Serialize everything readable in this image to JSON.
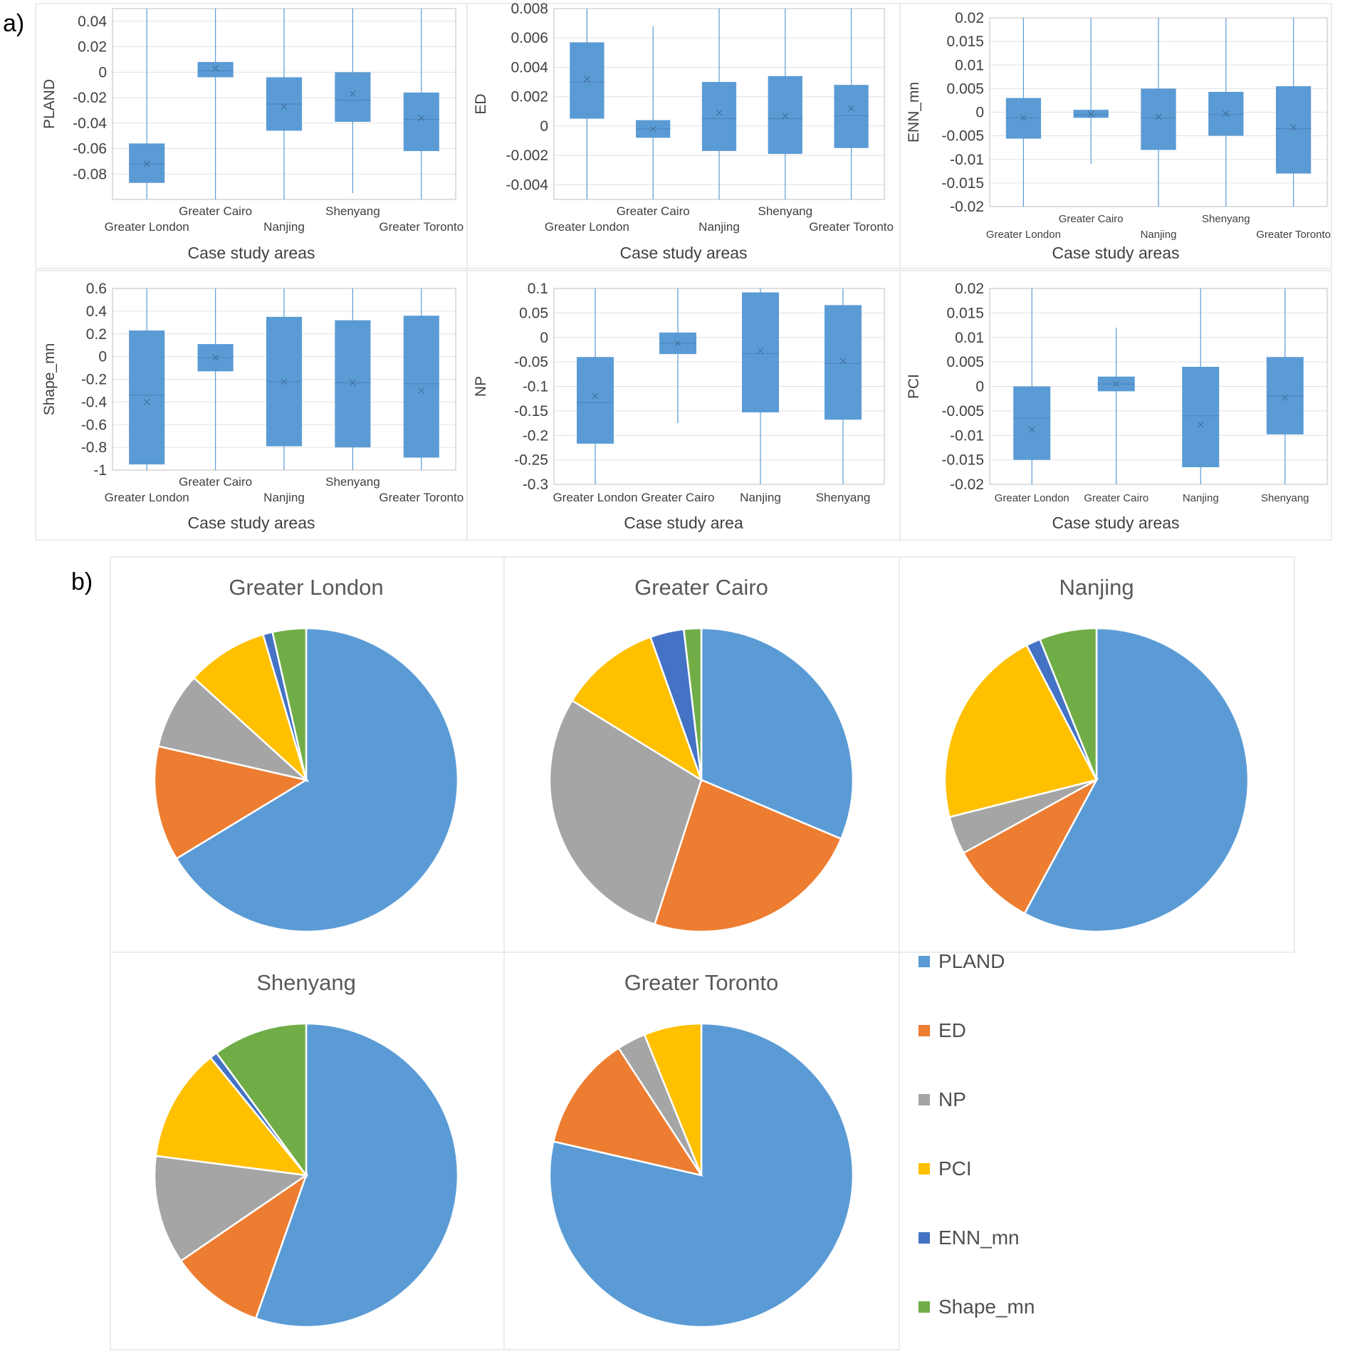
{
  "panel_labels": {
    "a": "a)",
    "b": "b)"
  },
  "colors": {
    "box": "#5B9BD5",
    "PLAND": "#5B9BD5",
    "ED": "#ED7D31",
    "NP": "#A5A5A5",
    "PCI": "#FFC000",
    "ENN_mn": "#4472C4",
    "Shape_mn": "#70AD47"
  },
  "legend": [
    {
      "key": "PLAND",
      "label": "PLAND"
    },
    {
      "key": "ED",
      "label": "ED"
    },
    {
      "key": "NP",
      "label": "NP"
    },
    {
      "key": "PCI",
      "label": "PCI"
    },
    {
      "key": "ENN_mn",
      "label": "ENN_mn"
    },
    {
      "key": "Shape_mn",
      "label": "Shape_mn"
    }
  ],
  "chart_data": [
    {
      "type": "box",
      "ylabel": "PLAND",
      "xlabel": "Case study areas",
      "ylim": [
        -0.1,
        0.05
      ],
      "yticks": [
        0.04,
        0.02,
        0,
        -0.02,
        -0.04,
        -0.06,
        -0.08
      ],
      "ytick_labels": [
        "0.04",
        "0.02",
        "0",
        "-0.02",
        "-0.04",
        "-0.06",
        "-0.08"
      ],
      "categories": [
        "Greater London",
        "Greater Cairo",
        "Nanjing",
        "Shenyang",
        "Greater Toronto"
      ],
      "boxes": [
        {
          "q1": -0.087,
          "median": -0.072,
          "q3": -0.056,
          "mean": -0.072,
          "whisker_low": -0.1,
          "whisker_high": 0.05
        },
        {
          "q1": -0.004,
          "median": 0.001,
          "q3": 0.008,
          "mean": 0.003,
          "whisker_low": -0.1,
          "whisker_high": 0.05
        },
        {
          "q1": -0.046,
          "median": -0.025,
          "q3": -0.004,
          "mean": -0.027,
          "whisker_low": -0.1,
          "whisker_high": 0.05
        },
        {
          "q1": -0.039,
          "median": -0.022,
          "q3": 0.0,
          "mean": -0.017,
          "whisker_low": -0.095,
          "whisker_high": 0.05
        },
        {
          "q1": -0.062,
          "median": -0.037,
          "q3": -0.016,
          "mean": -0.036,
          "whisker_low": -0.1,
          "whisker_high": 0.05
        }
      ]
    },
    {
      "type": "box",
      "ylabel": "ED",
      "xlabel": "Case study areas",
      "ylim": [
        -0.005,
        0.008
      ],
      "yticks": [
        0.008,
        0.006,
        0.004,
        0.002,
        0,
        -0.002,
        -0.004
      ],
      "ytick_labels": [
        "0.008",
        "0.006",
        "0.004",
        "0.002",
        "0",
        "-0.002",
        "-0.004"
      ],
      "categories": [
        "Greater London",
        "Greater Cairo",
        "Nanjing",
        "Shenyang",
        "Greater Toronto"
      ],
      "boxes": [
        {
          "q1": 0.0005,
          "median": 0.003,
          "q3": 0.0057,
          "mean": 0.0032,
          "whisker_low": -0.005,
          "whisker_high": 0.008
        },
        {
          "q1": -0.0008,
          "median": -0.0002,
          "q3": 0.0004,
          "mean": -0.0002,
          "whisker_low": -0.005,
          "whisker_high": 0.0068
        },
        {
          "q1": -0.0017,
          "median": 0.0005,
          "q3": 0.003,
          "mean": 0.0009,
          "whisker_low": -0.005,
          "whisker_high": 0.008
        },
        {
          "q1": -0.0019,
          "median": 0.0005,
          "q3": 0.0034,
          "mean": 0.0007,
          "whisker_low": -0.005,
          "whisker_high": 0.008
        },
        {
          "q1": -0.0015,
          "median": 0.0007,
          "q3": 0.0028,
          "mean": 0.0012,
          "whisker_low": -0.005,
          "whisker_high": 0.008
        }
      ]
    },
    {
      "type": "box",
      "ylabel": "ENN_mn",
      "xlabel": "Case study areas",
      "ylim": [
        -0.02,
        0.02
      ],
      "yticks": [
        0.02,
        0.015,
        0.01,
        0.005,
        0,
        -0.005,
        -0.01,
        -0.015,
        -0.02
      ],
      "ytick_labels": [
        "0.02",
        "0.015",
        "0.01",
        "0.005",
        "0",
        "-0.005",
        "-0.01",
        "-0.015",
        "-0.02"
      ],
      "categories": [
        "Greater London",
        "Greater Cairo",
        "Nanjing",
        "Shenyang",
        "Greater Toronto"
      ],
      "boxes": [
        {
          "q1": -0.0056,
          "median": -0.0012,
          "q3": 0.003,
          "mean": -0.0012,
          "whisker_low": -0.02,
          "whisker_high": 0.02
        },
        {
          "q1": -0.0012,
          "median": -0.0005,
          "q3": 0.0005,
          "mean": -0.0004,
          "whisker_low": -0.011,
          "whisker_high": 0.02
        },
        {
          "q1": -0.008,
          "median": -0.0012,
          "q3": 0.005,
          "mean": -0.001,
          "whisker_low": -0.02,
          "whisker_high": 0.02
        },
        {
          "q1": -0.005,
          "median": -0.0005,
          "q3": 0.0043,
          "mean": -0.0003,
          "whisker_low": -0.02,
          "whisker_high": 0.02
        },
        {
          "q1": -0.013,
          "median": -0.0035,
          "q3": 0.0055,
          "mean": -0.0032,
          "whisker_low": -0.02,
          "whisker_high": 0.02
        }
      ]
    },
    {
      "type": "box",
      "ylabel": "Shape_mn",
      "xlabel": "Case study areas",
      "ylim": [
        -1,
        0.6
      ],
      "yticks": [
        0.6,
        0.4,
        0.2,
        0,
        -0.2,
        -0.4,
        -0.6,
        -0.8,
        -1
      ],
      "ytick_labels": [
        "0.6",
        "0.4",
        "0.2",
        "0",
        "-0.2",
        "-0.4",
        "-0.6",
        "-0.8",
        "-1"
      ],
      "categories": [
        "Greater London",
        "Greater Cairo",
        "Nanjing",
        "Shenyang",
        "Greater Toronto"
      ],
      "boxes": [
        {
          "q1": -0.95,
          "median": -0.34,
          "q3": 0.23,
          "mean": -0.4,
          "whisker_low": -1,
          "whisker_high": 0.6
        },
        {
          "q1": -0.13,
          "median": -0.01,
          "q3": 0.11,
          "mean": -0.01,
          "whisker_low": -1,
          "whisker_high": 0.6
        },
        {
          "q1": -0.79,
          "median": -0.22,
          "q3": 0.35,
          "mean": -0.22,
          "whisker_low": -1,
          "whisker_high": 0.6
        },
        {
          "q1": -0.8,
          "median": -0.23,
          "q3": 0.32,
          "mean": -0.23,
          "whisker_low": -1,
          "whisker_high": 0.6
        },
        {
          "q1": -0.89,
          "median": -0.24,
          "q3": 0.36,
          "mean": -0.3,
          "whisker_low": -1,
          "whisker_high": 0.6
        }
      ]
    },
    {
      "type": "box",
      "ylabel": "NP",
      "xlabel": "Case study area",
      "ylim": [
        -0.3,
        0.1
      ],
      "yticks": [
        0.1,
        0.05,
        0,
        -0.05,
        -0.1,
        -0.15,
        -0.2,
        -0.25,
        -0.3
      ],
      "ytick_labels": [
        "0.1",
        "0.05",
        "0",
        "-0.05",
        "-0.1",
        "-0.15",
        "-0.2",
        "-0.25",
        "-0.3"
      ],
      "categories": [
        "Greater London",
        "Greater Cairo",
        "Nanjing",
        "Shenyang"
      ],
      "boxes": [
        {
          "q1": -0.217,
          "median": -0.133,
          "q3": -0.04,
          "mean": -0.12,
          "whisker_low": -0.3,
          "whisker_high": 0.1
        },
        {
          "q1": -0.034,
          "median": -0.012,
          "q3": 0.01,
          "mean": -0.012,
          "whisker_low": -0.175,
          "whisker_high": 0.1
        },
        {
          "q1": -0.153,
          "median": -0.033,
          "q3": 0.092,
          "mean": -0.027,
          "whisker_low": -0.3,
          "whisker_high": 0.1
        },
        {
          "q1": -0.168,
          "median": -0.053,
          "q3": 0.066,
          "mean": -0.048,
          "whisker_low": -0.3,
          "whisker_high": 0.1
        }
      ]
    },
    {
      "type": "box",
      "ylabel": "PCI",
      "xlabel": "Case study areas",
      "ylim": [
        -0.02,
        0.02
      ],
      "yticks": [
        0.02,
        0.015,
        0.01,
        0.005,
        0,
        -0.005,
        -0.01,
        -0.015,
        -0.02
      ],
      "ytick_labels": [
        "0.02",
        "0.015",
        "0.01",
        "0.005",
        "0",
        "-0.005",
        "-0.01",
        "-0.015",
        "-0.02"
      ],
      "categories": [
        "Greater London",
        "Greater Cairo",
        "Nanjing",
        "Shenyang"
      ],
      "boxes": [
        {
          "q1": -0.015,
          "median": -0.0065,
          "q3": 0.0,
          "mean": -0.0088,
          "whisker_low": -0.02,
          "whisker_high": 0.02
        },
        {
          "q1": -0.001,
          "median": 0.0005,
          "q3": 0.002,
          "mean": 0.0005,
          "whisker_low": -0.02,
          "whisker_high": 0.012
        },
        {
          "q1": -0.0165,
          "median": -0.006,
          "q3": 0.004,
          "mean": -0.0078,
          "whisker_low": -0.02,
          "whisker_high": 0.02
        },
        {
          "q1": -0.0098,
          "median": -0.002,
          "q3": 0.006,
          "mean": -0.0023,
          "whisker_low": -0.02,
          "whisker_high": 0.02
        }
      ]
    },
    {
      "type": "pie",
      "title": "Greater London",
      "labels": [
        "PLAND",
        "ED",
        "NP",
        "PCI",
        "ENN_mn",
        "Shape_mn"
      ],
      "values": [
        65,
        12,
        8,
        8.5,
        1,
        3.5
      ]
    },
    {
      "type": "pie",
      "title": "Greater Cairo",
      "labels": [
        "PLAND",
        "ED",
        "NP",
        "PCI",
        "ENN_mn",
        "Shape_mn"
      ],
      "values": [
        30.5,
        23,
        28,
        10.5,
        3.5,
        1.8
      ]
    },
    {
      "type": "pie",
      "title": "Nanjing",
      "labels": [
        "PLAND",
        "ED",
        "NP",
        "PCI",
        "ENN_mn",
        "Shape_mn"
      ],
      "values": [
        57,
        9,
        4,
        21,
        1.5,
        6
      ]
    },
    {
      "type": "pie",
      "title": "Shenyang",
      "labels": [
        "PLAND",
        "ED",
        "NP",
        "PCI",
        "ENN_mn",
        "Shape_mn"
      ],
      "values": [
        55,
        10,
        11.5,
        12,
        0.8,
        10
      ]
    },
    {
      "type": "pie",
      "title": "Greater Toronto",
      "labels": [
        "PLAND",
        "ED",
        "NP",
        "PCI",
        "ENN_mn",
        "Shape_mn"
      ],
      "values": [
        77,
        12,
        3,
        6,
        0,
        0
      ]
    }
  ]
}
